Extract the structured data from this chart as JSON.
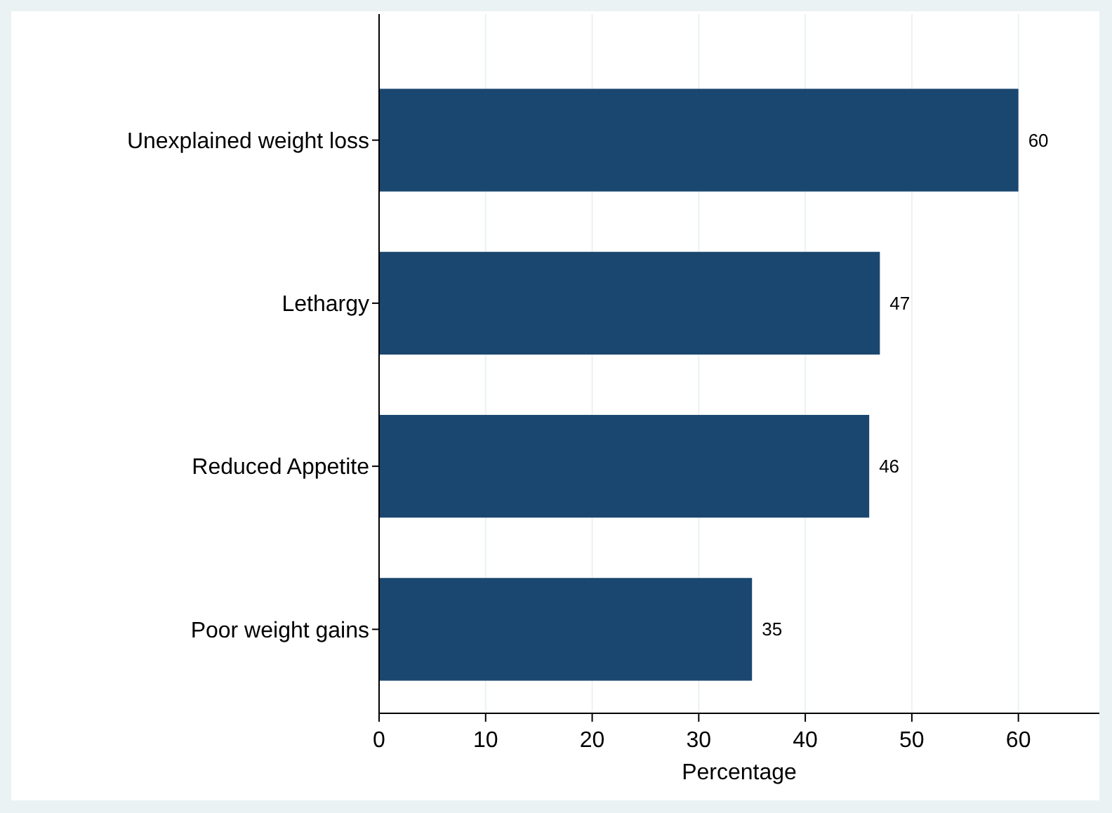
{
  "chart_data": {
    "type": "bar",
    "orientation": "horizontal",
    "xlabel": "Percentage",
    "categories": [
      "Unexplained weight loss",
      "Lethargy",
      "Reduced Appetite",
      "Poor weight gains"
    ],
    "values": [
      60,
      47,
      46,
      35
    ],
    "color": "#1a476f",
    "xlim": [
      0,
      67.6
    ],
    "xticks": [
      0,
      10,
      20,
      30,
      40,
      50,
      60
    ],
    "grid": "x",
    "data_labels": true
  }
}
